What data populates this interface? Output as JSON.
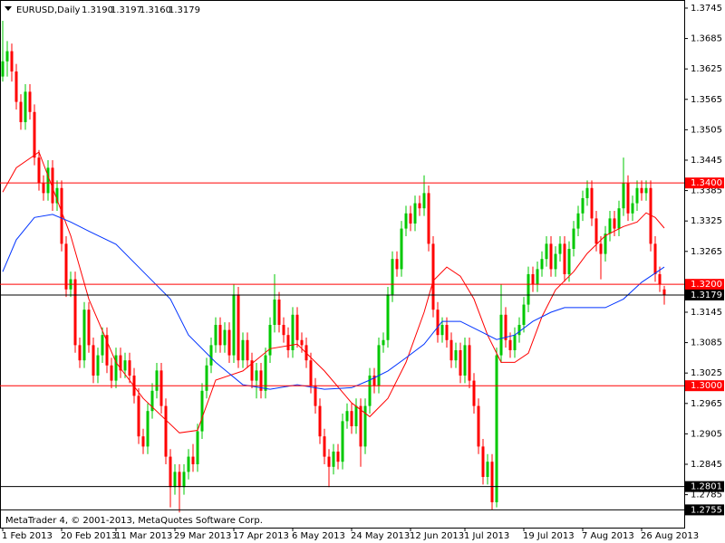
{
  "chart_data": {
    "type": "candlestick",
    "symbol": "EURUSD,Daily",
    "header_values": [
      "1.3190",
      "1.3197",
      "1.3160",
      "1.3179"
    ],
    "footer": "MetaTrader 4, © 2001-2013, MetaQuotes Software Corp.",
    "up_color": "#00c800",
    "down_color": "#ff0000",
    "ylim": [
      1.272,
      1.3761
    ],
    "xlim": [
      -0.6,
      150.4
    ],
    "yticks": [
      1.3745,
      1.3685,
      1.3625,
      1.3565,
      1.3505,
      1.3445,
      1.3385,
      1.3325,
      1.3265,
      1.3145,
      1.3085,
      1.3025,
      1.2965,
      1.2905,
      1.2845,
      1.2785
    ],
    "xticks": [
      {
        "value": 0,
        "label": "1 Feb 2013"
      },
      {
        "value": 13,
        "label": "20 Feb 2013"
      },
      {
        "value": 25,
        "label": "11 Mar 2013"
      },
      {
        "value": 38,
        "label": "29 Mar 2013"
      },
      {
        "value": 51,
        "label": "17 Apr 2013"
      },
      {
        "value": 64,
        "label": "6 May 2013"
      },
      {
        "value": 77,
        "label": "24 May 2013"
      },
      {
        "value": 90,
        "label": "12 Jun 2013"
      },
      {
        "value": 102,
        "label": "1 Jul 2013"
      },
      {
        "value": 115,
        "label": "19 Jul 2013"
      },
      {
        "value": 128,
        "label": "7 Aug 2013"
      },
      {
        "value": 141,
        "label": "26 Aug 2013"
      }
    ],
    "levels": [
      {
        "value": 1.34,
        "label": "1.3400",
        "color": "#ff0000"
      },
      {
        "value": 1.32,
        "label": "1.3200",
        "color": "#ff0000"
      },
      {
        "value": 1.3179,
        "label": "1.3179",
        "color": "#000000"
      },
      {
        "value": 1.3,
        "label": "1.3000",
        "color": "#ff0000"
      },
      {
        "value": 1.2801,
        "label": "1.2801",
        "color": "#000000"
      },
      {
        "value": 1.2755,
        "label": "1.2755",
        "color": "#000000"
      }
    ],
    "candles": [
      [
        1.361,
        1.372,
        1.36,
        1.364
      ],
      [
        1.364,
        1.368,
        1.361,
        1.366
      ],
      [
        1.366,
        1.3675,
        1.36,
        1.362
      ],
      [
        1.362,
        1.3635,
        1.3545,
        1.356
      ],
      [
        1.356,
        1.3575,
        1.3505,
        1.352
      ],
      [
        1.352,
        1.3595,
        1.3505,
        1.358
      ],
      [
        1.358,
        1.3595,
        1.3525,
        1.354
      ],
      [
        1.354,
        1.3555,
        1.3435,
        1.345
      ],
      [
        1.345,
        1.3465,
        1.3385,
        1.34
      ],
      [
        1.34,
        1.3415,
        1.3365,
        1.338
      ],
      [
        1.338,
        1.3445,
        1.3365,
        1.343
      ],
      [
        1.343,
        1.3445,
        1.3345,
        1.336
      ],
      [
        1.336,
        1.3405,
        1.3345,
        1.339
      ],
      [
        1.339,
        1.3405,
        1.3265,
        1.328
      ],
      [
        1.328,
        1.3295,
        1.3175,
        1.319
      ],
      [
        1.319,
        1.3225,
        1.3175,
        1.321
      ],
      [
        1.321,
        1.3225,
        1.3065,
        1.308
      ],
      [
        1.308,
        1.3095,
        1.3035,
        1.305
      ],
      [
        1.305,
        1.3165,
        1.3035,
        1.315
      ],
      [
        1.315,
        1.3165,
        1.3065,
        1.308
      ],
      [
        1.308,
        1.3095,
        1.3005,
        1.302
      ],
      [
        1.302,
        1.3075,
        1.3005,
        1.306
      ],
      [
        1.306,
        1.3115,
        1.3045,
        1.31
      ],
      [
        1.31,
        1.3115,
        1.3025,
        1.304
      ],
      [
        1.304,
        1.3055,
        1.2995,
        1.301
      ],
      [
        1.301,
        1.3075,
        1.2995,
        1.306
      ],
      [
        1.306,
        1.3075,
        1.3015,
        1.303
      ],
      [
        1.303,
        1.3065,
        1.3015,
        1.305
      ],
      [
        1.305,
        1.3065,
        1.3005,
        1.302
      ],
      [
        1.302,
        1.3035,
        1.2965,
        1.298
      ],
      [
        1.298,
        1.2995,
        1.2885,
        1.29
      ],
      [
        1.29,
        1.2915,
        1.2865,
        1.288
      ],
      [
        1.288,
        1.2965,
        1.2865,
        1.295
      ],
      [
        1.295,
        1.3005,
        1.2935,
        1.299
      ],
      [
        1.299,
        1.3045,
        1.2975,
        1.303
      ],
      [
        1.303,
        1.3045,
        1.2945,
        1.296
      ],
      [
        1.296,
        1.2975,
        1.2845,
        1.286
      ],
      [
        1.286,
        1.2875,
        1.276,
        1.28
      ],
      [
        1.28,
        1.2845,
        1.2785,
        1.283
      ],
      [
        1.283,
        1.2845,
        1.275,
        1.28
      ],
      [
        1.28,
        1.2845,
        1.2785,
        1.283
      ],
      [
        1.283,
        1.2875,
        1.2815,
        1.286
      ],
      [
        1.286,
        1.2885,
        1.283,
        1.2845
      ],
      [
        1.2845,
        1.2925,
        1.283,
        1.291
      ],
      [
        1.291,
        1.3005,
        1.2895,
        1.299
      ],
      [
        1.299,
        1.3055,
        1.2975,
        1.304
      ],
      [
        1.304,
        1.3095,
        1.3025,
        1.308
      ],
      [
        1.308,
        1.3135,
        1.3065,
        1.312
      ],
      [
        1.312,
        1.3135,
        1.3065,
        1.308
      ],
      [
        1.308,
        1.3125,
        1.3065,
        1.311
      ],
      [
        1.311,
        1.3125,
        1.3045,
        1.306
      ],
      [
        1.306,
        1.32,
        1.3045,
        1.318
      ],
      [
        1.318,
        1.3195,
        1.3035,
        1.305
      ],
      [
        1.305,
        1.3105,
        1.3035,
        1.309
      ],
      [
        1.309,
        1.3105,
        1.3035,
        1.305
      ],
      [
        1.305,
        1.3065,
        1.2995,
        1.301
      ],
      [
        1.301,
        1.3045,
        1.2975,
        1.303
      ],
      [
        1.303,
        1.3045,
        1.2975,
        1.299
      ],
      [
        1.299,
        1.3075,
        1.2975,
        1.306
      ],
      [
        1.306,
        1.3135,
        1.3045,
        1.312
      ],
      [
        1.312,
        1.322,
        1.3105,
        1.317
      ],
      [
        1.317,
        1.3185,
        1.3105,
        1.312
      ],
      [
        1.312,
        1.3135,
        1.3085,
        1.31
      ],
      [
        1.31,
        1.3115,
        1.3055,
        1.307
      ],
      [
        1.307,
        1.3155,
        1.3055,
        1.314
      ],
      [
        1.314,
        1.3155,
        1.3075,
        1.309
      ],
      [
        1.309,
        1.3105,
        1.3065,
        1.308
      ],
      [
        1.308,
        1.3095,
        1.3035,
        1.305
      ],
      [
        1.305,
        1.3065,
        1.2985,
        1.3
      ],
      [
        1.3,
        1.3015,
        1.2945,
        1.296
      ],
      [
        1.296,
        1.2975,
        1.2885,
        1.29
      ],
      [
        1.29,
        1.2915,
        1.2845,
        1.286
      ],
      [
        1.286,
        1.2875,
        1.28,
        1.284
      ],
      [
        1.284,
        1.2885,
        1.2825,
        1.287
      ],
      [
        1.287,
        1.2885,
        1.2835,
        1.285
      ],
      [
        1.285,
        1.2945,
        1.2835,
        1.293
      ],
      [
        1.293,
        1.2965,
        1.2915,
        1.295
      ],
      [
        1.295,
        1.2965,
        1.2905,
        1.292
      ],
      [
        1.292,
        1.2975,
        1.2905,
        1.296
      ],
      [
        1.296,
        1.2975,
        1.284,
        1.288
      ],
      [
        1.288,
        1.2975,
        1.2865,
        1.296
      ],
      [
        1.296,
        1.3035,
        1.2945,
        1.302
      ],
      [
        1.302,
        1.3035,
        1.2985,
        1.3
      ],
      [
        1.3,
        1.3095,
        1.2985,
        1.308
      ],
      [
        1.308,
        1.3105,
        1.3065,
        1.309
      ],
      [
        1.309,
        1.3195,
        1.3075,
        1.318
      ],
      [
        1.318,
        1.3265,
        1.3165,
        1.325
      ],
      [
        1.325,
        1.3265,
        1.3215,
        1.323
      ],
      [
        1.323,
        1.3325,
        1.3215,
        1.331
      ],
      [
        1.331,
        1.3355,
        1.3295,
        1.334
      ],
      [
        1.334,
        1.3355,
        1.3305,
        1.332
      ],
      [
        1.332,
        1.3375,
        1.3305,
        1.336
      ],
      [
        1.336,
        1.3375,
        1.3335,
        1.335
      ],
      [
        1.335,
        1.3415,
        1.3335,
        1.338
      ],
      [
        1.338,
        1.3395,
        1.3265,
        1.328
      ],
      [
        1.328,
        1.3295,
        1.3135,
        1.315
      ],
      [
        1.315,
        1.3165,
        1.3085,
        1.31
      ],
      [
        1.31,
        1.3135,
        1.3085,
        1.312
      ],
      [
        1.312,
        1.3135,
        1.3075,
        1.309
      ],
      [
        1.309,
        1.3105,
        1.3035,
        1.305
      ],
      [
        1.305,
        1.3085,
        1.3035,
        1.307
      ],
      [
        1.307,
        1.3085,
        1.3005,
        1.302
      ],
      [
        1.302,
        1.3095,
        1.3005,
        1.308
      ],
      [
        1.308,
        1.3095,
        1.2995,
        1.301
      ],
      [
        1.301,
        1.3025,
        1.2945,
        1.296
      ],
      [
        1.296,
        1.2975,
        1.2865,
        1.288
      ],
      [
        1.288,
        1.2895,
        1.2805,
        1.282
      ],
      [
        1.282,
        1.2865,
        1.2805,
        1.285
      ],
      [
        1.285,
        1.2865,
        1.2755,
        1.277
      ],
      [
        1.277,
        1.3075,
        1.276,
        1.306
      ],
      [
        1.306,
        1.32,
        1.3045,
        1.314
      ],
      [
        1.314,
        1.3155,
        1.3075,
        1.309
      ],
      [
        1.309,
        1.3105,
        1.3055,
        1.307
      ],
      [
        1.307,
        1.3115,
        1.3055,
        1.31
      ],
      [
        1.31,
        1.3135,
        1.3085,
        1.312
      ],
      [
        1.312,
        1.3175,
        1.3105,
        1.316
      ],
      [
        1.316,
        1.3235,
        1.3145,
        1.322
      ],
      [
        1.322,
        1.3235,
        1.3185,
        1.32
      ],
      [
        1.32,
        1.3245,
        1.3185,
        1.323
      ],
      [
        1.323,
        1.3265,
        1.3215,
        1.325
      ],
      [
        1.325,
        1.3295,
        1.3235,
        1.328
      ],
      [
        1.328,
        1.3295,
        1.3215,
        1.323
      ],
      [
        1.323,
        1.3275,
        1.3215,
        1.326
      ],
      [
        1.326,
        1.3295,
        1.3245,
        1.328
      ],
      [
        1.328,
        1.3295,
        1.3205,
        1.322
      ],
      [
        1.322,
        1.3285,
        1.3205,
        1.327
      ],
      [
        1.327,
        1.3325,
        1.3255,
        1.331
      ],
      [
        1.331,
        1.3355,
        1.3295,
        1.334
      ],
      [
        1.334,
        1.3385,
        1.3325,
        1.337
      ],
      [
        1.337,
        1.3405,
        1.3355,
        1.339
      ],
      [
        1.339,
        1.3405,
        1.3315,
        1.333
      ],
      [
        1.333,
        1.3345,
        1.3265,
        1.328
      ],
      [
        1.328,
        1.3295,
        1.321,
        1.326
      ],
      [
        1.326,
        1.3315,
        1.3245,
        1.33
      ],
      [
        1.33,
        1.3345,
        1.3285,
        1.333
      ],
      [
        1.333,
        1.3345,
        1.3295,
        1.331
      ],
      [
        1.331,
        1.3365,
        1.3295,
        1.335
      ],
      [
        1.335,
        1.345,
        1.3335,
        1.34
      ],
      [
        1.34,
        1.3415,
        1.3325,
        1.334
      ],
      [
        1.334,
        1.3375,
        1.3325,
        1.336
      ],
      [
        1.336,
        1.3405,
        1.3345,
        1.339
      ],
      [
        1.339,
        1.3405,
        1.3365,
        1.338
      ],
      [
        1.338,
        1.3405,
        1.3365,
        1.339
      ],
      [
        1.339,
        1.3405,
        1.3265,
        1.328
      ],
      [
        1.328,
        1.3295,
        1.3205,
        1.322
      ],
      [
        1.322,
        1.3235,
        1.3185,
        1.32
      ],
      [
        1.319,
        1.3197,
        1.316,
        1.3179
      ]
    ],
    "series": [
      {
        "color": "#ff0000",
        "x": [
          0,
          3,
          8,
          15,
          19,
          25,
          31,
          39,
          43,
          47,
          53,
          59,
          65,
          71,
          77,
          81,
          85,
          89,
          93,
          95,
          98,
          101,
          104,
          107,
          110,
          113,
          116,
          119,
          122,
          126,
          129,
          133,
          137,
          140,
          142,
          144,
          146
        ],
        "values": [
          1.3382,
          1.343,
          1.3461,
          1.3296,
          1.3171,
          1.3046,
          1.2975,
          1.2907,
          1.2912,
          1.3011,
          1.3029,
          1.3073,
          1.3082,
          1.3029,
          1.2966,
          1.2939,
          1.2975,
          1.3046,
          1.3145,
          1.3207,
          1.3234,
          1.3216,
          1.3171,
          1.31,
          1.3046,
          1.3046,
          1.3064,
          1.3136,
          1.3189,
          1.3225,
          1.3261,
          1.3296,
          1.3314,
          1.3323,
          1.3341,
          1.3332,
          1.3311
        ]
      },
      {
        "color": "#0033ff",
        "x": [
          0,
          3,
          7,
          11,
          15,
          19,
          25,
          31,
          37,
          41,
          47,
          53,
          59,
          65,
          71,
          77,
          81,
          85,
          89,
          93,
          97,
          101,
          105,
          109,
          113,
          117,
          121,
          124,
          129,
          133,
          137,
          141,
          146
        ],
        "values": [
          1.3225,
          1.3288,
          1.3332,
          1.3338,
          1.3323,
          1.3305,
          1.3279,
          1.3225,
          1.3171,
          1.31,
          1.3046,
          1.3002,
          1.2993,
          1.3002,
          1.2993,
          1.2996,
          1.3011,
          1.3029,
          1.3055,
          1.3082,
          1.3127,
          1.3127,
          1.3109,
          1.3091,
          1.31,
          1.3127,
          1.3145,
          1.3154,
          1.3154,
          1.3154,
          1.3171,
          1.3204,
          1.3234
        ]
      }
    ]
  }
}
